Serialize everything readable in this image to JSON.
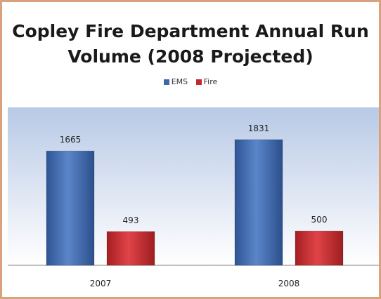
{
  "chart_data": {
    "type": "bar",
    "title_lines": [
      "Copley Fire Department Annual Run",
      "Volume (2008 Projected)"
    ],
    "categories": [
      "2007",
      "2008"
    ],
    "series": [
      {
        "name": "EMS",
        "values": [
          1665,
          1831
        ],
        "color": "#3f67a8"
      },
      {
        "name": "Fire",
        "values": [
          493,
          500
        ],
        "color": "#c6282b"
      }
    ],
    "data_labels": true,
    "legend_position": "top",
    "grid": false,
    "ylim": [
      0,
      2300
    ]
  }
}
